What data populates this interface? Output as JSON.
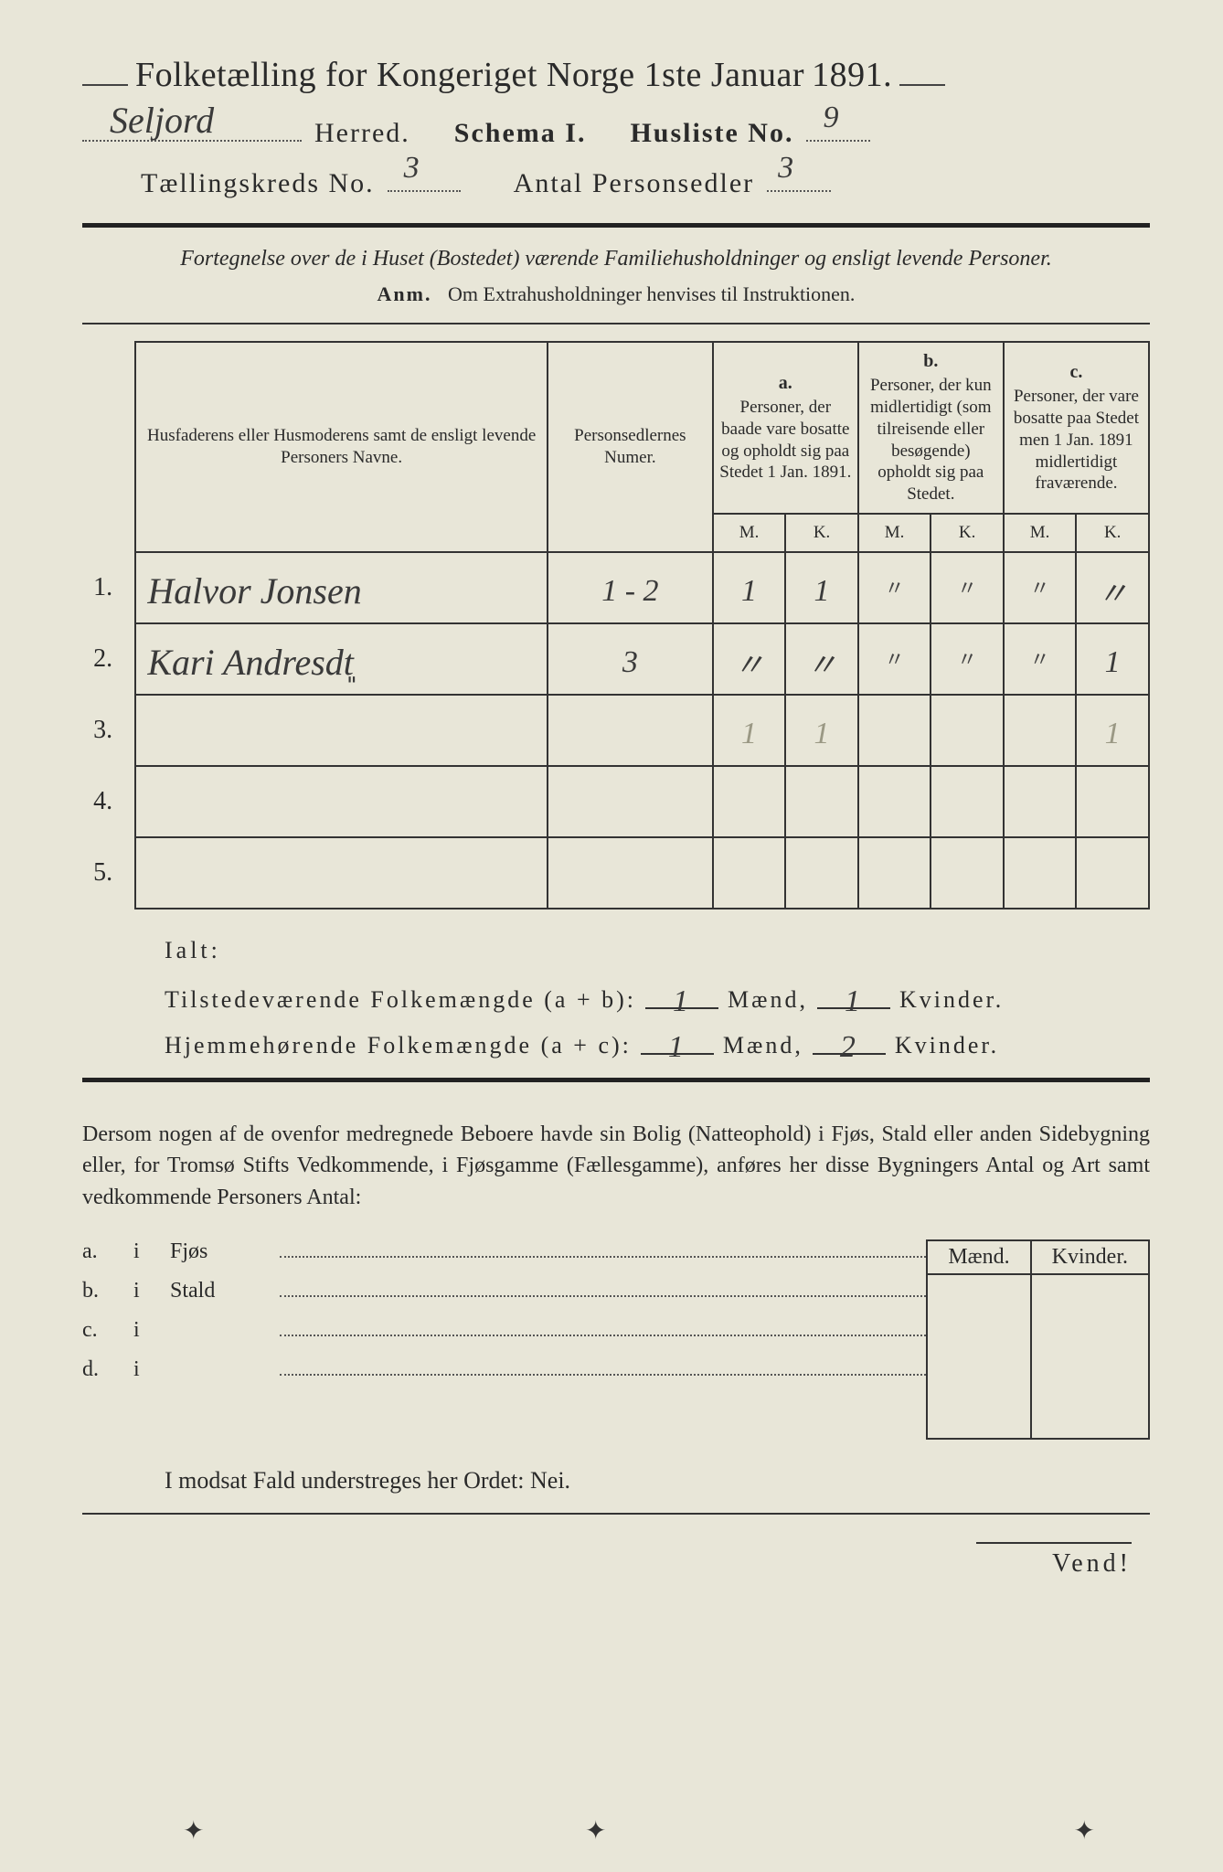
{
  "colors": {
    "paper": "#e8e6d8",
    "ink": "#2a2a2a",
    "rule": "#333333",
    "handwriting": "#3a3a3a",
    "faint_pencil": "#9a9884"
  },
  "typography": {
    "body_family": "Georgia, Times New Roman, serif",
    "handwritten_family": "Brush Script MT, cursive",
    "title_size_pt": 38,
    "header_size_pt": 30,
    "table_head_size_pt": 19,
    "body_size_pt": 24
  },
  "header": {
    "title_prefix": "Folketælling for Kongeriget Norge 1ste Januar",
    "year": "1891.",
    "herred_name": "Seljord",
    "herred_label": "Herred.",
    "schema_label": "Schema I.",
    "husliste_label": "Husliste No.",
    "husliste_no": "9",
    "kreds_label": "Tællingskreds No.",
    "kreds_no": "3",
    "antal_label": "Antal Personsedler",
    "antal_no": "3"
  },
  "intro": {
    "line": "Fortegnelse over de i Huset (Bostedet) værende Familiehusholdninger og ensligt levende Personer.",
    "anm_label": "Anm.",
    "anm_text": "Om Extrahusholdninger henvises til Instruktionen."
  },
  "table": {
    "col_names": "Husfaderens eller Husmoderens samt de ensligt levende Personers Navne.",
    "col_numer": "Personsedlernes Numer.",
    "col_a_label": "a.",
    "col_a": "Personer, der baade vare bosatte og opholdt sig paa Stedet 1 Jan. 1891.",
    "col_b_label": "b.",
    "col_b": "Personer, der kun midlertidigt (som tilreisende eller besøgende) opholdt sig paa Stedet.",
    "col_c_label": "c.",
    "col_c": "Personer, der vare bosatte paa Stedet men 1 Jan. 1891 midlertidigt fraværende.",
    "m": "M.",
    "k": "K.",
    "rows": [
      {
        "n": "1.",
        "name": "Halvor Jonsen",
        "numer": "1 - 2",
        "a_m": "1",
        "a_k": "1",
        "b_m": "〃",
        "b_k": "〃",
        "c_m": "〃",
        "c_k": "〃"
      },
      {
        "n": "2.",
        "name": "Kari Andresdt͈",
        "numer": "3",
        "a_m": "〃",
        "a_k": "〃",
        "b_m": "〃",
        "b_k": "〃",
        "c_m": "〃",
        "c_k": "1"
      },
      {
        "n": "3.",
        "name": "",
        "numer": "",
        "a_m": "1",
        "a_k": "1",
        "b_m": "",
        "b_k": "",
        "c_m": "",
        "c_k": "1",
        "faint": true
      },
      {
        "n": "4.",
        "name": "",
        "numer": "",
        "a_m": "",
        "a_k": "",
        "b_m": "",
        "b_k": "",
        "c_m": "",
        "c_k": ""
      },
      {
        "n": "5.",
        "name": "",
        "numer": "",
        "a_m": "",
        "a_k": "",
        "b_m": "",
        "b_k": "",
        "c_m": "",
        "c_k": ""
      }
    ]
  },
  "ialt": {
    "label": "Ialt:",
    "line1_label": "Tilstedeværende Folkemængde (a + b):",
    "line2_label": "Hjemmehørende Folkemængde (a + c):",
    "maend": "Mænd,",
    "kvinder": "Kvinder.",
    "l1_m": "1",
    "l1_k": "1",
    "l2_m": "1",
    "l2_k": "2"
  },
  "para": "Dersom nogen af de ovenfor medregnede Beboere havde sin Bolig (Natteophold) i Fjøs, Stald eller anden Sidebygning eller, for Tromsø Stifts Vedkommende, i Fjøsgamme (Fællesgamme), anføres her disse Bygningers Antal og Art samt vedkommende Personers Antal:",
  "lower": {
    "maend": "Mænd.",
    "kvinder": "Kvinder.",
    "rows": [
      {
        "a": "a.",
        "i": "i",
        "name": "Fjøs"
      },
      {
        "a": "b.",
        "i": "i",
        "name": "Stald"
      },
      {
        "a": "c.",
        "i": "i",
        "name": ""
      },
      {
        "a": "d.",
        "i": "i",
        "name": ""
      }
    ]
  },
  "nei_line": "I modsat Fald understreges her Ordet: Nei.",
  "vend": "Vend!"
}
